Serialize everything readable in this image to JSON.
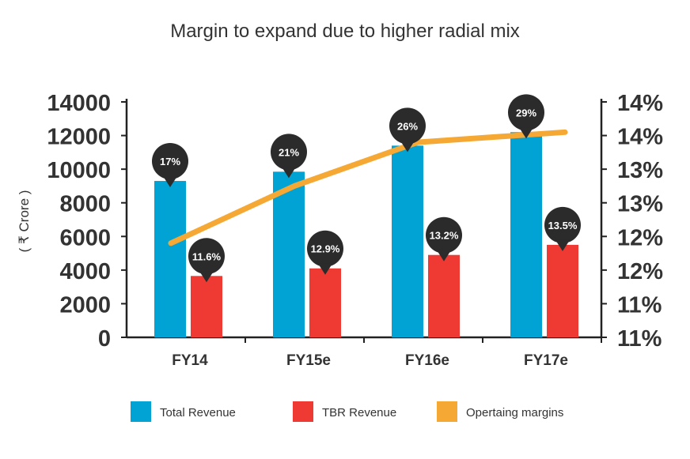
{
  "chart_data": {
    "type": "bar",
    "title": "Margin to expand due to higher radial mix",
    "ylabel": "( ₹ Crore )",
    "categories": [
      "FY14",
      "FY15e",
      "FY16e",
      "FY17e"
    ],
    "ylim": [
      0,
      14000
    ],
    "y_ticks": [
      "14000",
      "12000",
      "10000",
      "8000",
      "6000",
      "4000",
      "2000",
      "0"
    ],
    "y2_ticks": [
      "14%",
      "14%",
      "13%",
      "13%",
      "12%",
      "12%",
      "11%",
      "11%"
    ],
    "series": [
      {
        "name": "Total Revenue",
        "kind": "bar",
        "color": "#00A3D3",
        "values": [
          9300,
          9850,
          11400,
          12200
        ],
        "labels": [
          "17%",
          "21%",
          "26%",
          "29%"
        ]
      },
      {
        "name": "TBR Revenue",
        "kind": "bar",
        "color": "#EE3A33",
        "values": [
          3650,
          4100,
          4900,
          5500
        ],
        "labels": [
          "11.6%",
          "12.9%",
          "13.2%",
          "13.5%"
        ]
      },
      {
        "name": "Opertaing margins",
        "kind": "line",
        "axis": "secondary",
        "color": "#F5A833",
        "values": [
          0.119,
          0.1275,
          0.134,
          0.1355
        ]
      }
    ],
    "y2lim": [
      0.105,
      0.14
    ],
    "legend_position": "bottom"
  }
}
